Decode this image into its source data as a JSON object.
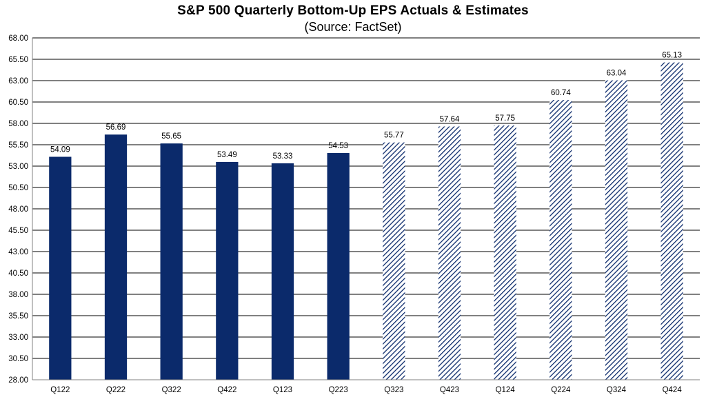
{
  "chart_data": {
    "type": "bar",
    "title": "S&P 500 Quarterly Bottom-Up EPS Actuals & Estimates",
    "subtitle": "(Source: FactSet)",
    "xlabel": "",
    "ylabel": "",
    "categories": [
      "Q122",
      "Q222",
      "Q322",
      "Q422",
      "Q123",
      "Q223",
      "Q323",
      "Q423",
      "Q124",
      "Q224",
      "Q324",
      "Q424"
    ],
    "series": [
      {
        "values": [
          54.09,
          56.69,
          55.65,
          53.49,
          53.33,
          54.53,
          55.77,
          57.64,
          57.75,
          60.74,
          63.04,
          65.13
        ],
        "value_labels": [
          "54.09",
          "56.69",
          "55.65",
          "53.49",
          "53.33",
          "54.53",
          "55.77",
          "57.64",
          "57.75",
          "60.74",
          "63.04",
          "65.13"
        ],
        "fill_styles": [
          "solid",
          "solid",
          "solid",
          "solid",
          "solid",
          "solid",
          "hatched",
          "hatched",
          "hatched",
          "hatched",
          "hatched",
          "hatched"
        ]
      }
    ],
    "ylim": [
      28.0,
      68.0
    ],
    "yticks": [
      28.0,
      30.5,
      33.0,
      35.5,
      38.0,
      40.5,
      43.0,
      45.5,
      48.0,
      50.5,
      53.0,
      55.5,
      58.0,
      60.5,
      63.0,
      65.5,
      68.0
    ],
    "ytick_labels": [
      "28.00",
      "30.50",
      "33.00",
      "35.50",
      "38.00",
      "40.50",
      "43.00",
      "45.50",
      "48.00",
      "50.50",
      "53.00",
      "55.50",
      "58.00",
      "60.50",
      "63.00",
      "65.50",
      "68.00"
    ],
    "grid": true,
    "legend": "none",
    "colors": {
      "bar": "#0b2a6b",
      "grid": "#000000",
      "axis": "#808080"
    }
  }
}
